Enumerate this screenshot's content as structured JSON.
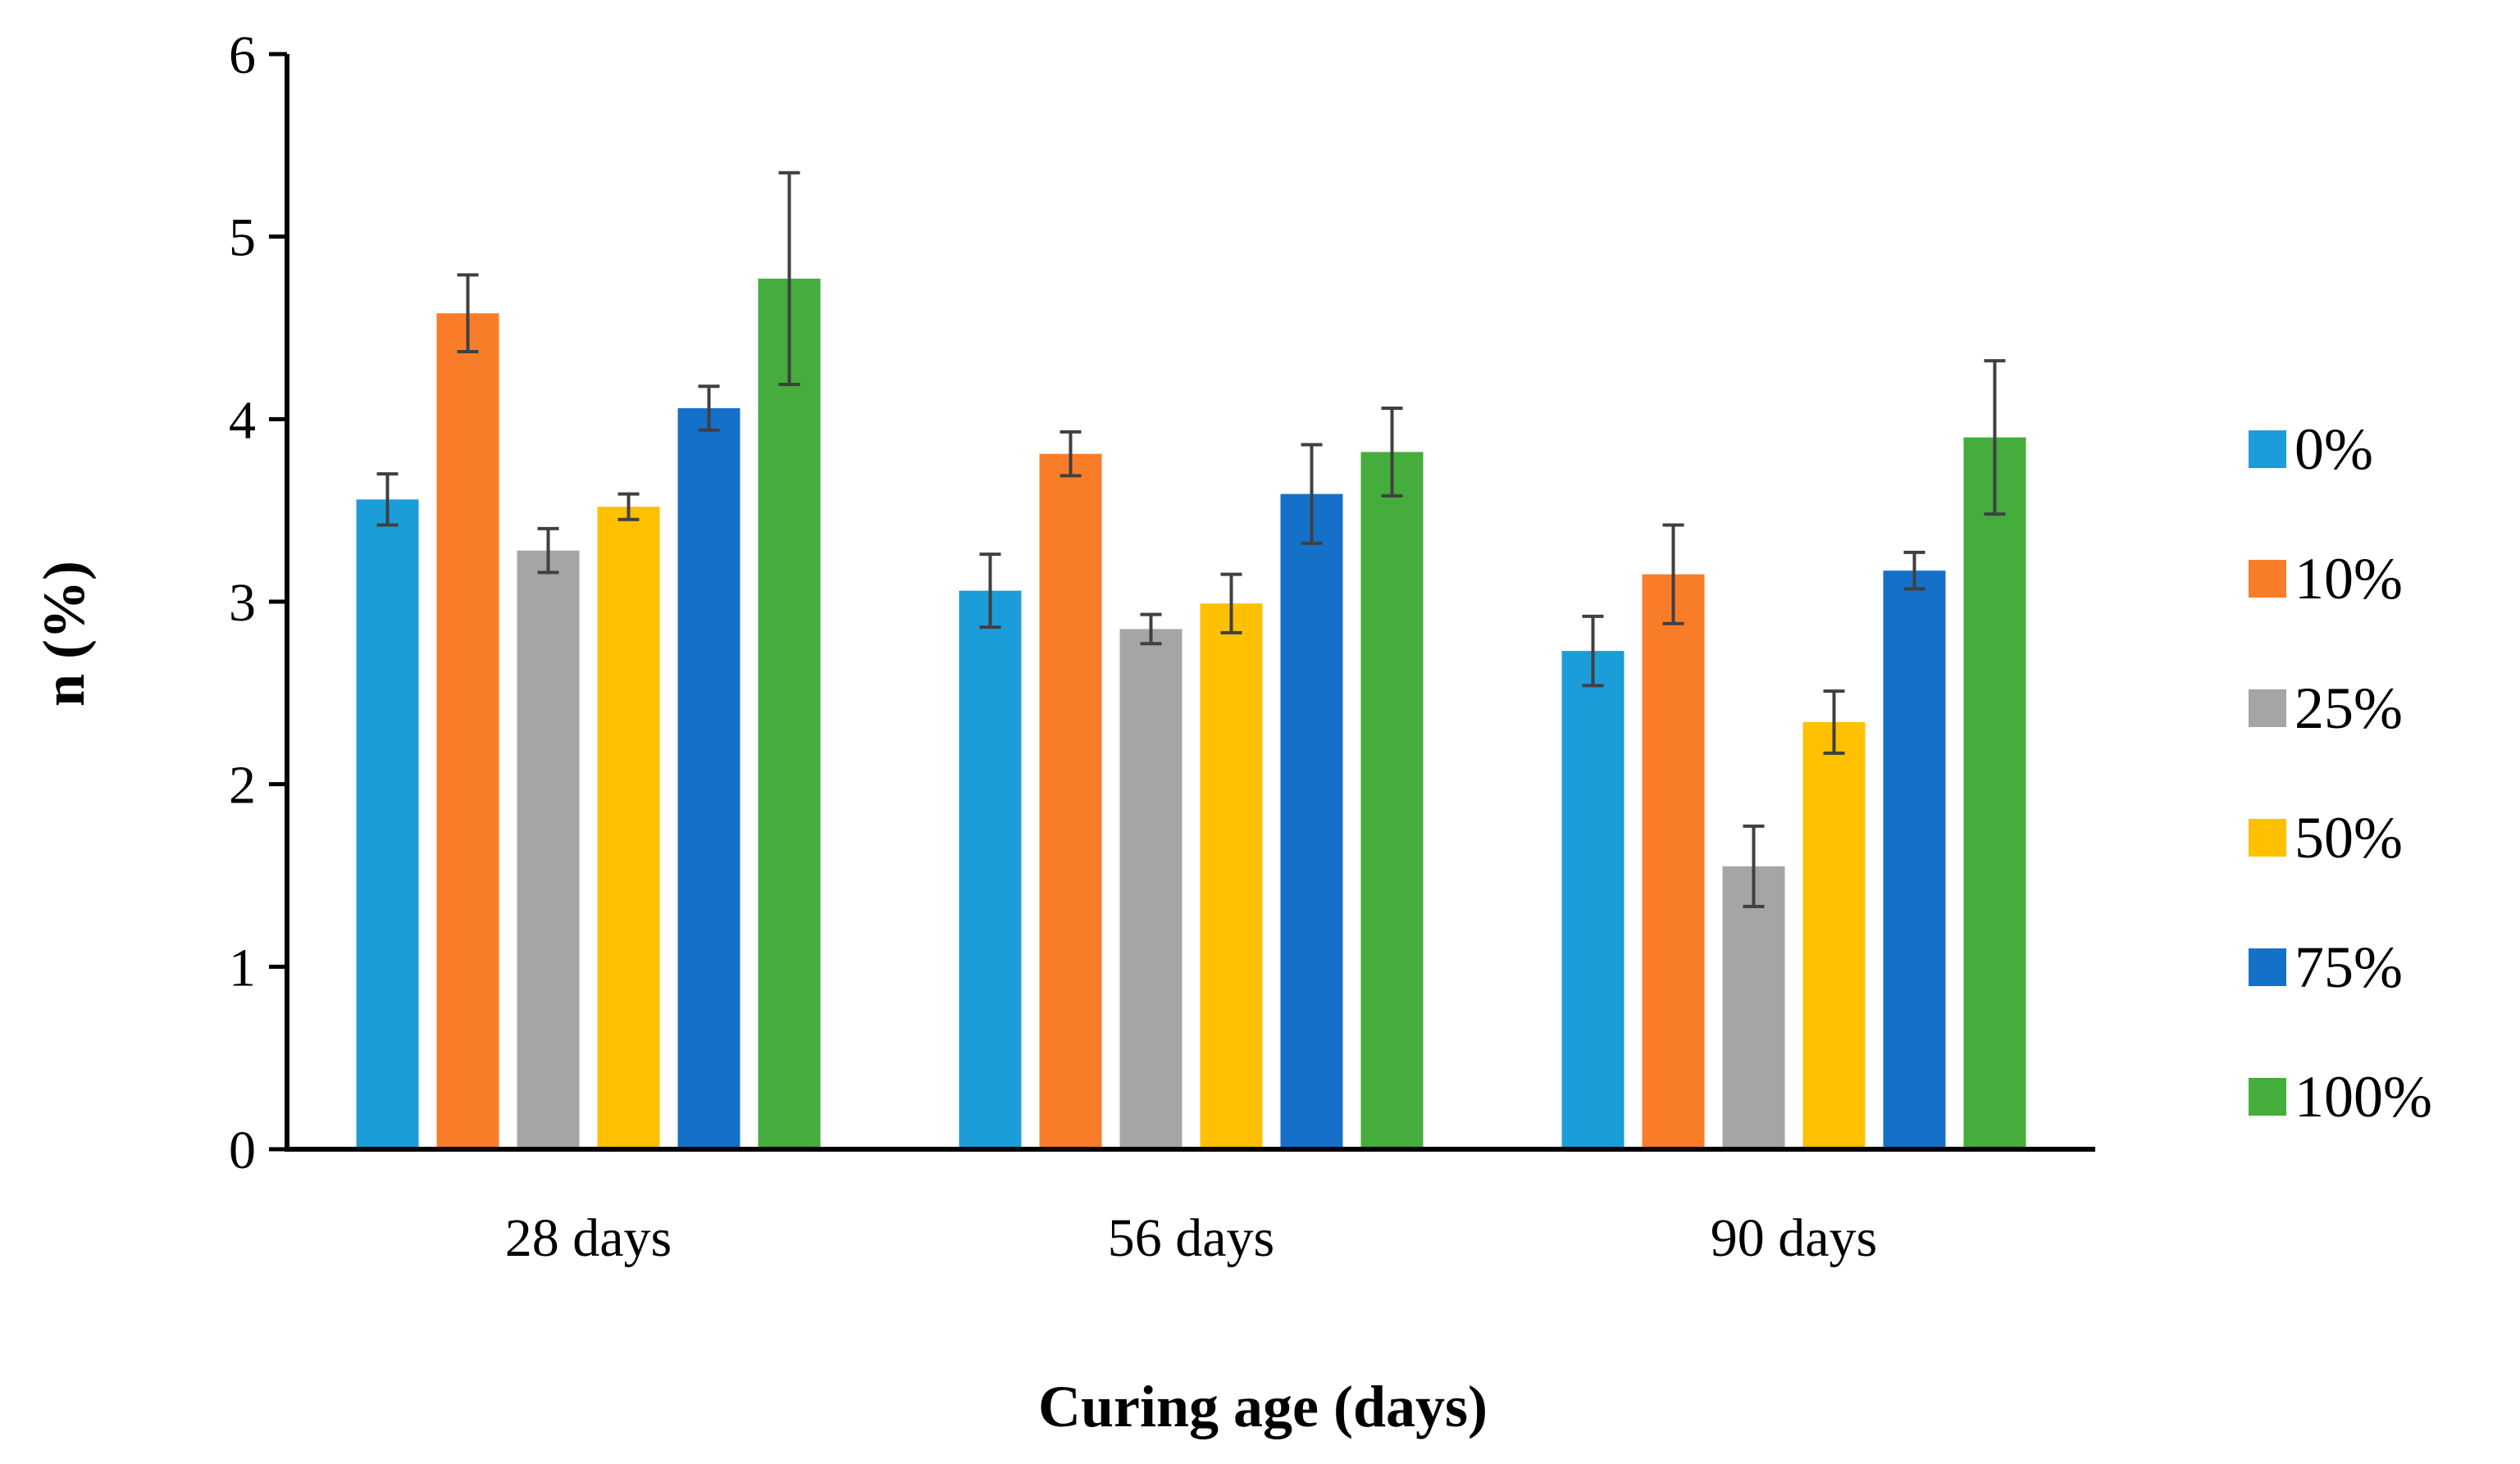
{
  "chart_data": {
    "type": "bar",
    "title": "",
    "xlabel": "Curing age (days)",
    "ylabel": "n (%)",
    "ylim": [
      0,
      6
    ],
    "yticks": [
      "0",
      "1",
      "2",
      "3",
      "4",
      "5",
      "6"
    ],
    "categories": [
      "28 days",
      "56 days",
      "90 days"
    ],
    "grid": false,
    "legend_position": "right",
    "series": [
      {
        "name": "0%",
        "color": "#1b9dd9",
        "values": [
          3.56,
          3.06,
          2.73
        ],
        "errors": [
          0.14,
          0.2,
          0.19
        ]
      },
      {
        "name": "10%",
        "color": "#f97d29",
        "values": [
          4.58,
          3.81,
          3.15
        ],
        "errors": [
          0.21,
          0.12,
          0.27
        ]
      },
      {
        "name": "25%",
        "color": "#a5a5a5",
        "values": [
          3.28,
          2.85,
          1.55
        ],
        "errors": [
          0.12,
          0.08,
          0.22
        ]
      },
      {
        "name": "50%",
        "color": "#ffc000",
        "values": [
          3.52,
          2.99,
          2.34
        ],
        "errors": [
          0.07,
          0.16,
          0.17
        ]
      },
      {
        "name": "75%",
        "color": "#1570c9",
        "values": [
          4.06,
          3.59,
          3.17
        ],
        "errors": [
          0.12,
          0.27,
          0.1
        ]
      },
      {
        "name": "100%",
        "color": "#44ad3c",
        "values": [
          4.77,
          3.82,
          3.9
        ],
        "errors": [
          0.58,
          0.24,
          0.42
        ]
      }
    ]
  }
}
